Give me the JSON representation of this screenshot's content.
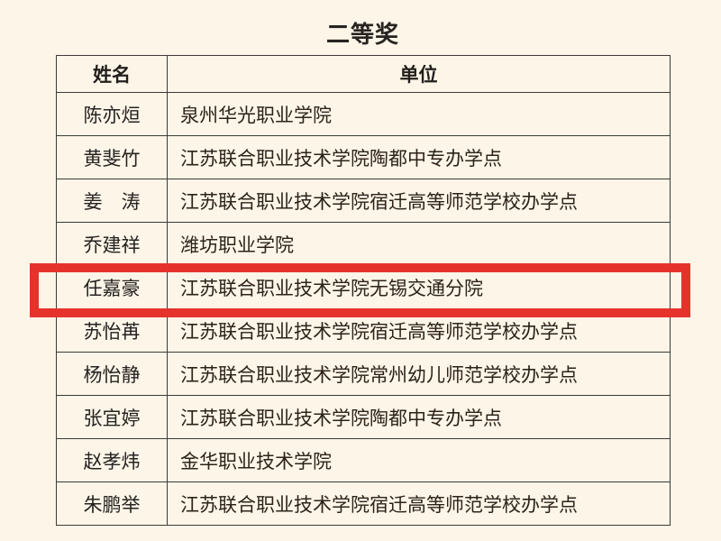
{
  "page": {
    "title": "二等奖",
    "background_color": "#fcf5e8"
  },
  "table": {
    "headers": {
      "name": "姓名",
      "unit": "单位"
    },
    "rows": [
      {
        "name": "陈亦烜",
        "unit": "泉州华光职业学院"
      },
      {
        "name": "黄斐竹",
        "unit": "江苏联合职业技术学院陶都中专办学点"
      },
      {
        "name": "姜　涛",
        "unit": "江苏联合职业技术学院宿迁高等师范学校办学点"
      },
      {
        "name": "乔建祥",
        "unit": "潍坊职业学院"
      },
      {
        "name": "任嘉豪",
        "unit": "江苏联合职业技术学院无锡交通分院"
      },
      {
        "name": "苏怡苒",
        "unit": "江苏联合职业技术学院宿迁高等师范学校办学点"
      },
      {
        "name": "杨怡静",
        "unit": "江苏联合职业技术学院常州幼儿师范学校办学点"
      },
      {
        "name": "张宜婷",
        "unit": "江苏联合职业技术学院陶都中专办学点"
      },
      {
        "name": "赵孝炜",
        "unit": "金华职业技术学院"
      },
      {
        "name": "朱鹏举",
        "unit": "江苏联合职业技术学院宿迁高等师范学校办学点"
      }
    ]
  },
  "annotation": {
    "type": "highlight-rectangle",
    "color": "#e5332c",
    "highlighted_row_name": "任嘉豪",
    "highlighted_row_unit": "江苏联合职业技术学院无锡交通分院"
  }
}
